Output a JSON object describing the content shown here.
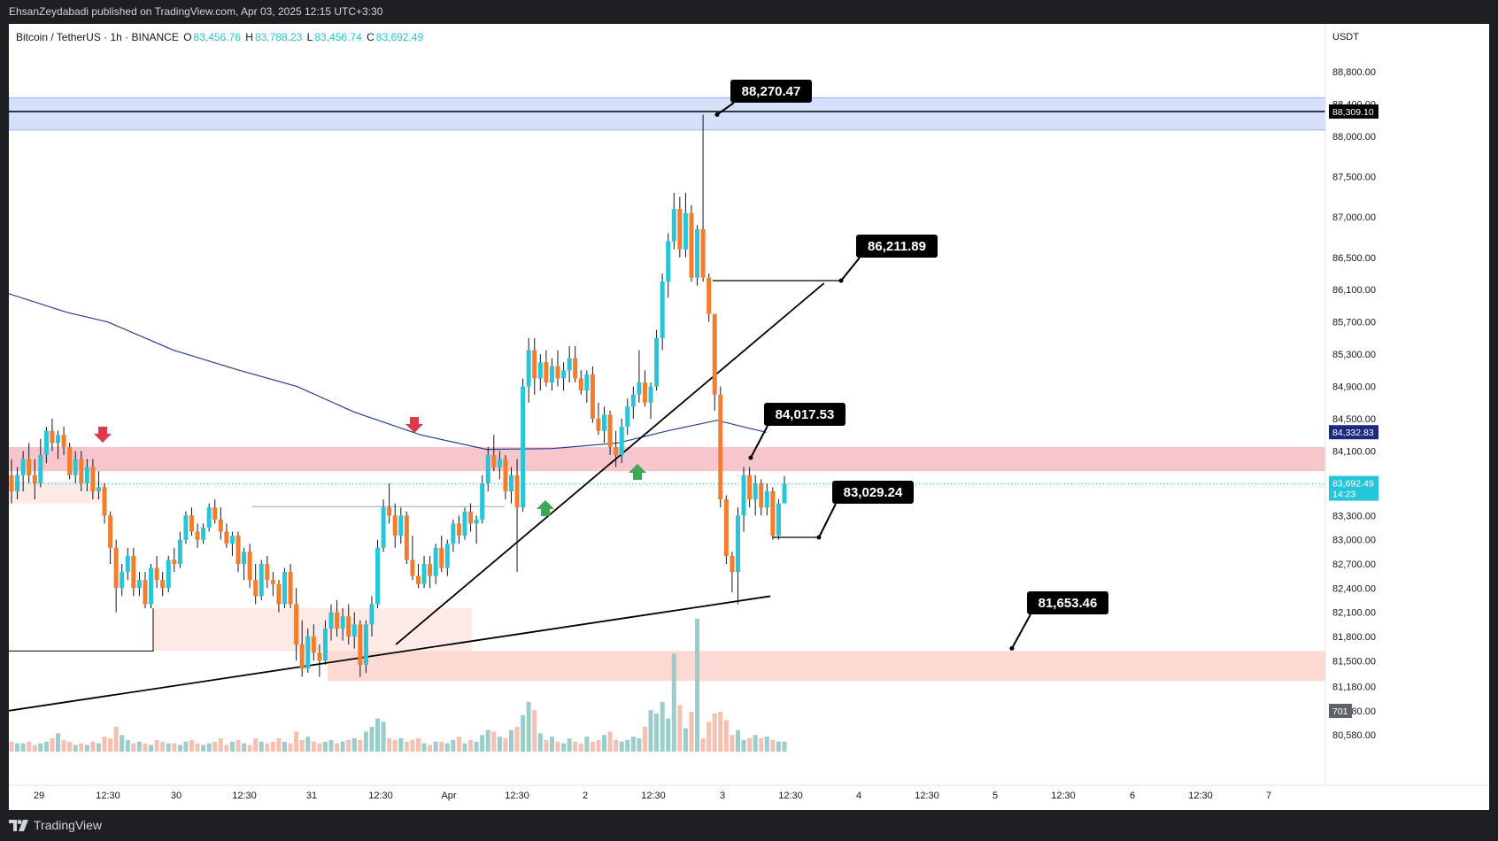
{
  "header": {
    "published_text": "EhsanZeydabadi published on TradingView.com, Apr 03, 2025 12:15 UTC+3:30"
  },
  "footer": {
    "brand": "TradingView"
  },
  "legend": {
    "symbol": "Bitcoin / TetherUS · 1h · BINANCE",
    "o_label": "O",
    "o_value": "83,456.76",
    "h_label": "H",
    "h_value": "83,788.23",
    "l_label": "L",
    "l_value": "83,456.74",
    "c_label": "C",
    "c_value": "83,692.49"
  },
  "colors": {
    "up": "#26c6da",
    "down": "#f57c2a",
    "ma": "#2a3f8f",
    "resistance_zone": "#f7c5cc",
    "support_zone": "#fcd9d2",
    "top_zone": "#d6e0fb",
    "callout_bg": "#000000",
    "arrow_down": "#e0384a",
    "arrow_up": "#3fa857"
  },
  "chart_data": {
    "type": "candlestick",
    "symbol": "Bitcoin / TetherUS",
    "interval": "1h",
    "exchange": "BINANCE",
    "currency": "USDT",
    "price_axis": {
      "ticks": [
        "88,800.00",
        "88,400.00",
        "88,000.00",
        "87,500.00",
        "87,000.00",
        "86,500.00",
        "86,100.00",
        "85,700.00",
        "85,300.00",
        "84,900.00",
        "84,500.00",
        "84,100.00",
        "83,300.00",
        "83,000.00",
        "82,700.00",
        "82,400.00",
        "82,100.00",
        "81,800.00",
        "81,500.00",
        "81,180.00",
        "80,880.00",
        "80,580.00"
      ],
      "ylim": [
        80500,
        89100
      ]
    },
    "time_axis": {
      "ticks": [
        "29",
        "12:30",
        "30",
        "12:30",
        "31",
        "12:30",
        "Apr",
        "12:30",
        "2",
        "12:30",
        "3",
        "12:30",
        "4",
        "12:30",
        "5",
        "12:30",
        "6",
        "12:30",
        "7"
      ]
    },
    "price_badges": {
      "currency_label": "USDT",
      "level_top": "88,309.10",
      "ma_value": "84,332.83",
      "last_price": "83,692.49",
      "countdown": "14:23",
      "volume": "701"
    },
    "annotations": [
      {
        "label": "88,270.47",
        "price": 88270.47
      },
      {
        "label": "86,211.89",
        "price": 86211.89
      },
      {
        "label": "84,017.53",
        "price": 84017.53
      },
      {
        "label": "83,029.24",
        "price": 83029.24
      },
      {
        "label": "81,653.46",
        "price": 81653.46
      }
    ],
    "zones": [
      {
        "name": "top",
        "from": 88080,
        "to": 88480
      },
      {
        "name": "resistance",
        "from": 83850,
        "to": 84150
      },
      {
        "name": "support",
        "from": 81250,
        "to": 81620
      }
    ],
    "horizontal_line": 88309.1,
    "candles": [
      [
        83800,
        84000,
        83450,
        83600
      ],
      [
        83600,
        83900,
        83500,
        83800
      ],
      [
        83800,
        84100,
        83600,
        84000
      ],
      [
        84000,
        84200,
        83700,
        83800
      ],
      [
        83800,
        84000,
        83500,
        83700
      ],
      [
        83700,
        84250,
        83650,
        84050
      ],
      [
        84050,
        84400,
        83950,
        84350
      ],
      [
        84350,
        84500,
        84100,
        84200
      ],
      [
        84200,
        84350,
        84000,
        84300
      ],
      [
        84300,
        84400,
        84050,
        84150
      ],
      [
        84150,
        84200,
        83750,
        83800
      ],
      [
        83800,
        84100,
        83700,
        84000
      ],
      [
        84000,
        84100,
        83600,
        83700
      ],
      [
        83700,
        84000,
        83600,
        83900
      ],
      [
        83900,
        84000,
        83500,
        83600
      ],
      [
        83600,
        83850,
        83500,
        83650
      ],
      [
        83650,
        83700,
        83200,
        83300
      ],
      [
        83300,
        83350,
        82700,
        82900
      ],
      [
        82900,
        83000,
        82100,
        82400
      ],
      [
        82400,
        82700,
        82300,
        82600
      ],
      [
        82600,
        82900,
        82500,
        82800
      ],
      [
        82800,
        82900,
        82300,
        82400
      ],
      [
        82400,
        82600,
        82300,
        82500
      ],
      [
        82500,
        82600,
        82150,
        82200
      ],
      [
        82200,
        82700,
        82150,
        82650
      ],
      [
        82650,
        82800,
        82400,
        82500
      ],
      [
        82500,
        82600,
        82300,
        82400
      ],
      [
        82400,
        82800,
        82350,
        82750
      ],
      [
        82750,
        82900,
        82600,
        82700
      ],
      [
        82700,
        83100,
        82650,
        83000
      ],
      [
        83000,
        83350,
        82950,
        83300
      ],
      [
        83300,
        83400,
        83050,
        83100
      ],
      [
        83100,
        83200,
        82900,
        83000
      ],
      [
        83000,
        83200,
        82950,
        83150
      ],
      [
        83150,
        83450,
        83100,
        83400
      ],
      [
        83400,
        83500,
        83200,
        83250
      ],
      [
        83250,
        83400,
        83000,
        83100
      ],
      [
        83100,
        83200,
        82900,
        82950
      ],
      [
        82950,
        83100,
        82800,
        83050
      ],
      [
        83050,
        83100,
        82600,
        82700
      ],
      [
        82700,
        82900,
        82500,
        82850
      ],
      [
        82850,
        82950,
        82400,
        82500
      ],
      [
        82500,
        82700,
        82200,
        82300
      ],
      [
        82300,
        82750,
        82250,
        82700
      ],
      [
        82700,
        82800,
        82400,
        82500
      ],
      [
        82500,
        82600,
        82300,
        82450
      ],
      [
        82450,
        82500,
        82100,
        82200
      ],
      [
        82200,
        82650,
        82150,
        82600
      ],
      [
        82600,
        82700,
        82150,
        82200
      ],
      [
        82200,
        82400,
        81500,
        81700
      ],
      [
        81700,
        82000,
        81300,
        81400
      ],
      [
        81400,
        81900,
        81350,
        81800
      ],
      [
        81800,
        81950,
        81500,
        81600
      ],
      [
        81600,
        81700,
        81300,
        81500
      ],
      [
        81500,
        82000,
        81450,
        81900
      ],
      [
        81900,
        82200,
        81750,
        82100
      ],
      [
        82100,
        82250,
        81800,
        81900
      ],
      [
        81900,
        82150,
        81750,
        82050
      ],
      [
        82050,
        82200,
        81700,
        81800
      ],
      [
        81800,
        82100,
        81650,
        81950
      ],
      [
        81950,
        82000,
        81300,
        81450
      ],
      [
        81450,
        82000,
        81350,
        81950
      ],
      [
        81950,
        82300,
        81800,
        82200
      ],
      [
        82200,
        83000,
        82150,
        82900
      ],
      [
        82900,
        83500,
        82850,
        83400
      ],
      [
        83400,
        83700,
        83200,
        83300
      ],
      [
        83300,
        83450,
        82900,
        83050
      ],
      [
        83050,
        83400,
        82950,
        83300
      ],
      [
        83300,
        83350,
        82700,
        82750
      ],
      [
        82750,
        83050,
        82500,
        82550
      ],
      [
        82550,
        82700,
        82400,
        82450
      ],
      [
        82450,
        82800,
        82400,
        82700
      ],
      [
        82700,
        82800,
        82400,
        82550
      ],
      [
        82550,
        82950,
        82450,
        82900
      ],
      [
        82900,
        83050,
        82600,
        82650
      ],
      [
        82650,
        83000,
        82550,
        82950
      ],
      [
        82950,
        83250,
        82850,
        83200
      ],
      [
        83200,
        83300,
        82950,
        83050
      ],
      [
        83050,
        83400,
        83000,
        83350
      ],
      [
        83350,
        83450,
        83100,
        83200
      ],
      [
        83200,
        83300,
        82950,
        83250
      ],
      [
        83250,
        83800,
        83200,
        83700
      ],
      [
        83700,
        84150,
        83600,
        84050
      ],
      [
        84050,
        84300,
        83850,
        83900
      ],
      [
        83900,
        84100,
        83750,
        84000
      ],
      [
        84000,
        84050,
        83500,
        83600
      ],
      [
        83600,
        83900,
        83450,
        83800
      ],
      [
        83800,
        84000,
        82600,
        83400
      ],
      [
        83400,
        85000,
        83350,
        84900
      ],
      [
        84900,
        85500,
        84700,
        85350
      ],
      [
        85350,
        85500,
        84800,
        85000
      ],
      [
        85000,
        85300,
        84850,
        85200
      ],
      [
        85200,
        85350,
        84900,
        84950
      ],
      [
        84950,
        85250,
        84850,
        85150
      ],
      [
        85150,
        85350,
        84900,
        85000
      ],
      [
        85000,
        85200,
        84850,
        85100
      ],
      [
        85100,
        85400,
        84950,
        85250
      ],
      [
        85250,
        85400,
        84950,
        85000
      ],
      [
        85000,
        85100,
        84800,
        84850
      ],
      [
        84850,
        85100,
        84700,
        85050
      ],
      [
        85050,
        85150,
        84450,
        84500
      ],
      [
        84500,
        84700,
        84300,
        84350
      ],
      [
        84350,
        84650,
        84200,
        84550
      ],
      [
        84550,
        84600,
        84050,
        84150
      ],
      [
        84150,
        84350,
        83900,
        84050
      ],
      [
        84050,
        84500,
        83950,
        84400
      ],
      [
        84400,
        84750,
        84300,
        84650
      ],
      [
        84650,
        84900,
        84500,
        84800
      ],
      [
        84800,
        85350,
        84700,
        84950
      ],
      [
        84950,
        85100,
        84650,
        84700
      ],
      [
        84700,
        84950,
        84500,
        84900
      ],
      [
        84900,
        85600,
        84850,
        85500
      ],
      [
        85500,
        86300,
        85350,
        86200
      ],
      [
        86200,
        86800,
        86000,
        86700
      ],
      [
        86700,
        87300,
        86600,
        87100
      ],
      [
        87100,
        87250,
        86500,
        86600
      ],
      [
        86600,
        87300,
        86500,
        87050
      ],
      [
        87050,
        87150,
        86200,
        86250
      ],
      [
        86250,
        86900,
        86150,
        86850
      ],
      [
        86850,
        88270,
        86200,
        86250
      ],
      [
        86250,
        86300,
        85700,
        85800
      ],
      [
        85800,
        85800,
        84600,
        84800
      ],
      [
        84800,
        84900,
        83400,
        83500
      ],
      [
        83500,
        83550,
        82700,
        82800
      ],
      [
        82800,
        82850,
        82350,
        82600
      ],
      [
        82600,
        83400,
        82200,
        83300
      ],
      [
        83300,
        83900,
        83100,
        83800
      ],
      [
        83800,
        83900,
        83400,
        83500
      ],
      [
        83500,
        83800,
        83300,
        83700
      ],
      [
        83700,
        83750,
        83300,
        83400
      ],
      [
        83400,
        83700,
        83300,
        83600
      ],
      [
        83600,
        83650,
        83000,
        83050
      ],
      [
        83050,
        83500,
        83000,
        83450
      ],
      [
        83450,
        83788,
        83456,
        83692
      ]
    ],
    "volume": [
      12,
      10,
      10,
      12,
      8,
      10,
      12,
      16,
      22,
      14,
      12,
      8,
      10,
      8,
      12,
      10,
      18,
      16,
      30,
      20,
      14,
      10,
      12,
      10,
      8,
      14,
      12,
      10,
      10,
      8,
      12,
      14,
      10,
      8,
      10,
      12,
      16,
      8,
      12,
      14,
      10,
      8,
      16,
      12,
      10,
      12,
      16,
      12,
      10,
      24,
      14,
      18,
      12,
      10,
      12,
      14,
      10,
      12,
      14,
      16,
      14,
      24,
      30,
      40,
      36,
      16,
      14,
      16,
      12,
      14,
      16,
      10,
      8,
      12,
      12,
      10,
      14,
      18,
      10,
      14,
      12,
      20,
      26,
      24,
      18,
      16,
      26,
      30,
      44,
      60,
      50,
      22,
      14,
      18,
      12,
      10,
      16,
      12,
      10,
      18,
      12,
      14,
      20,
      24,
      14,
      12,
      14,
      18,
      16,
      30,
      50,
      46,
      60,
      40,
      118,
      56,
      28,
      48,
      160,
      16,
      36,
      46,
      48,
      38,
      20,
      26,
      14,
      16,
      20,
      16,
      18,
      14,
      12,
      12,
      10
    ],
    "volume_colors": "up/down by candle direction",
    "moving_average": [
      [
        0,
        86050
      ],
      [
        0.07,
        85820
      ],
      [
        0.12,
        85700
      ],
      [
        0.2,
        85350
      ],
      [
        0.28,
        85100
      ],
      [
        0.35,
        84900
      ],
      [
        0.42,
        84580
      ],
      [
        0.5,
        84300
      ],
      [
        0.58,
        84120
      ],
      [
        0.66,
        84130
      ],
      [
        0.74,
        84200
      ],
      [
        0.8,
        84350
      ],
      [
        0.86,
        84480
      ],
      [
        0.9,
        84380
      ],
      [
        0.92,
        84332
      ]
    ],
    "trendlines": [
      {
        "from": [
          0,
          80880
        ],
        "to": [
          0.925,
          82300
        ]
      },
      {
        "from": [
          0.47,
          81700
        ],
        "to": [
          0.99,
          86180
        ]
      }
    ]
  }
}
